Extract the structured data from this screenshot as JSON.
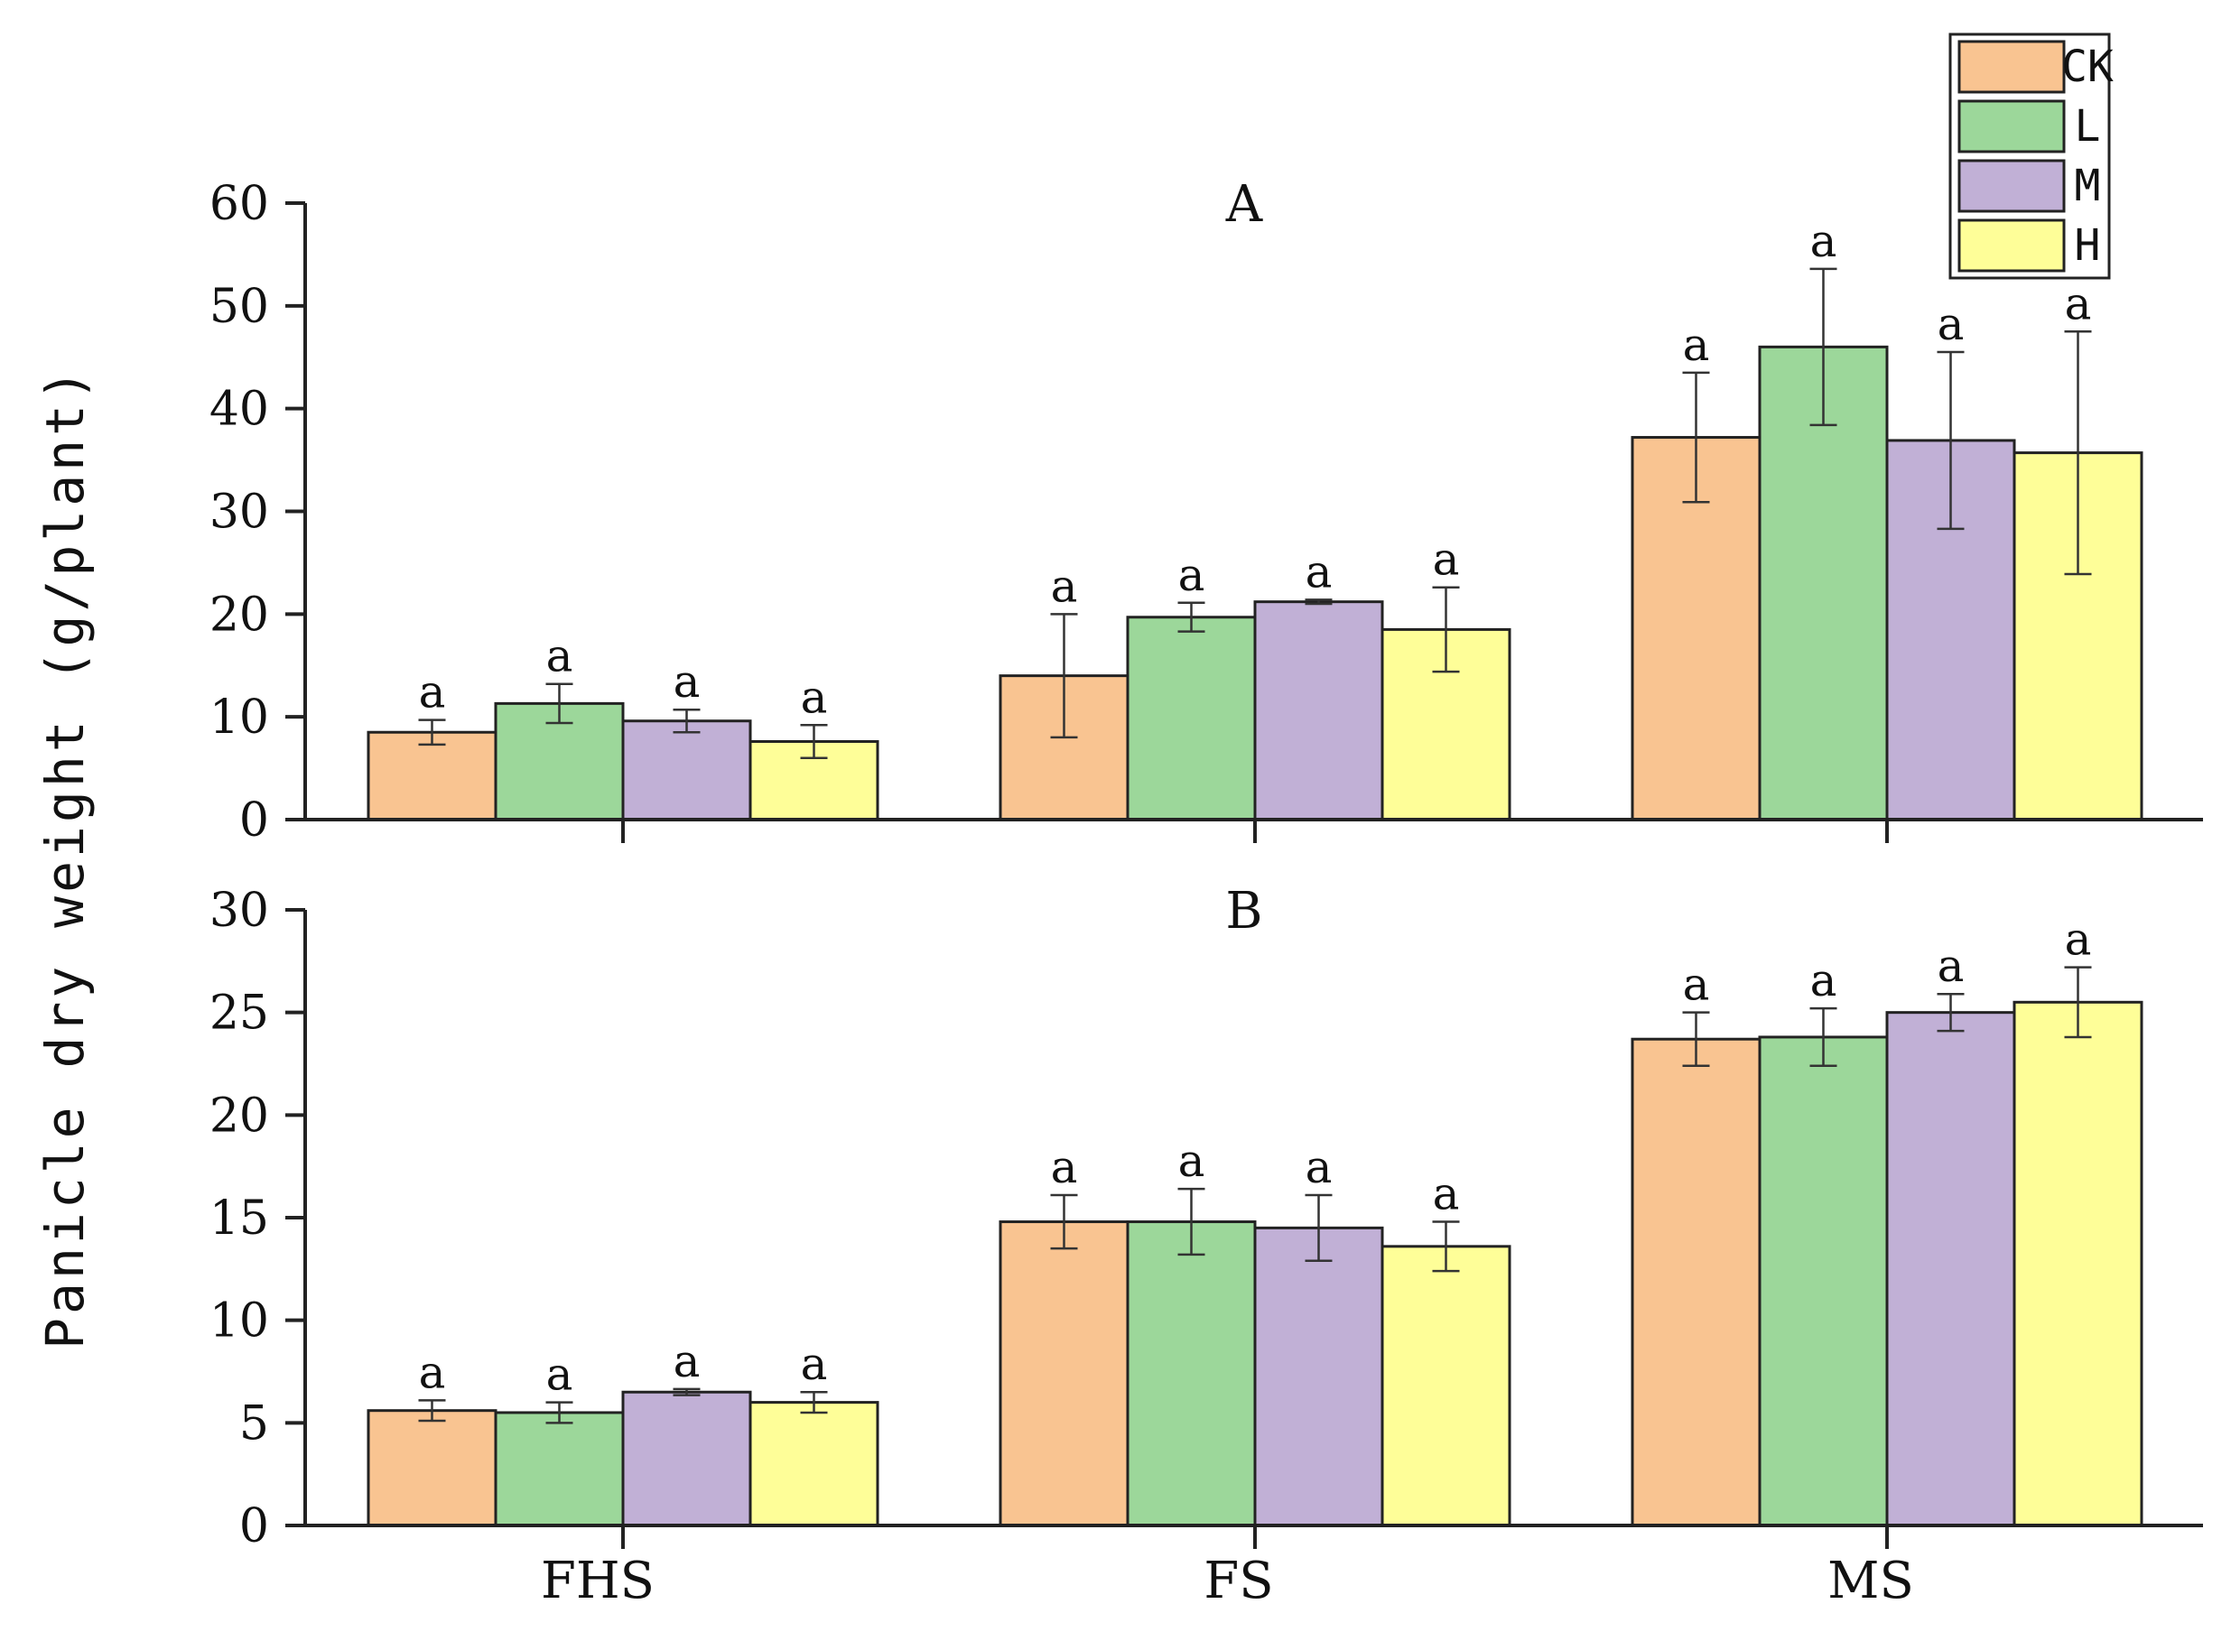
{
  "chart_data": {
    "type": "bar",
    "ylabel": "Panicle dry weight (g/plant)",
    "categories": [
      "FHS",
      "FS",
      "MS"
    ],
    "series_colors": {
      "CK": "#f9c491",
      "L": "#9cd79a",
      "M": "#c1b0d6",
      "H": "#fefe98"
    },
    "legend": {
      "position": "top-right",
      "entries": [
        "CK",
        "L",
        "M",
        "H"
      ]
    },
    "panels": [
      {
        "label": "A",
        "ylim": [
          0,
          60
        ],
        "yticks": [
          0,
          10,
          20,
          30,
          40,
          50,
          60
        ],
        "series": [
          {
            "name": "CK",
            "values": [
              8.5,
              14.0,
              37.2
            ],
            "errors": [
              1.2,
              6.0,
              6.3
            ],
            "sig": [
              "a",
              "a",
              "a"
            ]
          },
          {
            "name": "L",
            "values": [
              11.3,
              19.7,
              46.0
            ],
            "errors": [
              1.9,
              1.4,
              7.6
            ],
            "sig": [
              "a",
              "a",
              "a"
            ]
          },
          {
            "name": "M",
            "values": [
              9.6,
              21.2,
              36.9
            ],
            "errors": [
              1.1,
              0.2,
              8.6
            ],
            "sig": [
              "a",
              "a",
              "a"
            ]
          },
          {
            "name": "H",
            "values": [
              7.6,
              18.5,
              35.7
            ],
            "errors": [
              1.6,
              4.1,
              11.8
            ],
            "sig": [
              "a",
              "a",
              "a"
            ]
          }
        ]
      },
      {
        "label": "B",
        "ylim": [
          0,
          30
        ],
        "yticks": [
          0,
          5,
          10,
          15,
          20,
          25,
          30
        ],
        "series": [
          {
            "name": "CK",
            "values": [
              5.6,
              14.8,
              23.7
            ],
            "errors": [
              0.5,
              1.3,
              1.3
            ],
            "sig": [
              "a",
              "a",
              "a"
            ]
          },
          {
            "name": "L",
            "values": [
              5.5,
              14.8,
              23.8
            ],
            "errors": [
              0.5,
              1.6,
              1.4
            ],
            "sig": [
              "a",
              "a",
              "a"
            ]
          },
          {
            "name": "M",
            "values": [
              6.5,
              14.5,
              25.0
            ],
            "errors": [
              0.15,
              1.6,
              0.9
            ],
            "sig": [
              "a",
              "a",
              "a"
            ]
          },
          {
            "name": "H",
            "values": [
              6.0,
              13.6,
              25.5
            ],
            "errors": [
              0.5,
              1.2,
              1.7
            ],
            "sig": [
              "a",
              "a",
              "a"
            ]
          }
        ]
      }
    ]
  }
}
